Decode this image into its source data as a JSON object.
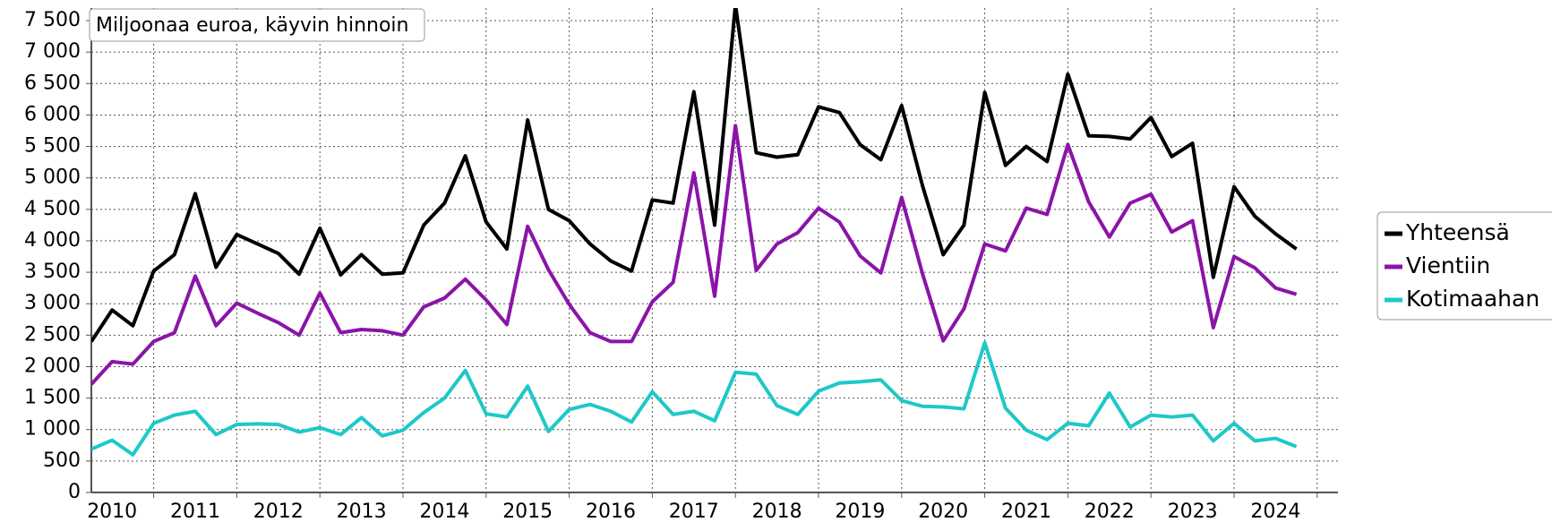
{
  "chart_data": {
    "type": "line",
    "annotation": "Miljoonaa euroa, käyvin hinnoin",
    "x": [
      2010,
      2010.25,
      2010.5,
      2010.75,
      2011,
      2011.25,
      2011.5,
      2011.75,
      2012,
      2012.25,
      2012.5,
      2012.75,
      2013,
      2013.25,
      2013.5,
      2013.75,
      2014,
      2014.25,
      2014.5,
      2014.75,
      2015,
      2015.25,
      2015.5,
      2015.75,
      2016,
      2016.25,
      2016.5,
      2016.75,
      2017,
      2017.25,
      2017.5,
      2017.75,
      2018,
      2018.25,
      2018.5,
      2018.75,
      2019,
      2019.25,
      2019.5,
      2019.75,
      2020,
      2020.25,
      2020.5,
      2020.75,
      2021,
      2021.25,
      2021.5,
      2021.75,
      2022,
      2022.25,
      2022.5,
      2022.75,
      2023,
      2023.25,
      2023.5,
      2023.75,
      2024,
      2024.25,
      2024.5
    ],
    "series": [
      {
        "name": "Yhteensä",
        "color": "#000000",
        "values": [
          2400,
          2900,
          2650,
          3520,
          3780,
          4750,
          3580,
          4100,
          3950,
          3800,
          3470,
          4200,
          3460,
          3780,
          3470,
          3490,
          4250,
          4600,
          5350,
          4300,
          3870,
          5920,
          4500,
          4320,
          3950,
          3680,
          3520,
          4650,
          4600,
          6370,
          4250,
          7750,
          5400,
          5330,
          5370,
          6130,
          6040,
          5530,
          5290,
          6150,
          4880,
          3780,
          4250,
          6360,
          5200,
          5500,
          5260,
          6650,
          5670,
          5660,
          5620,
          5960,
          5340,
          5550,
          3420,
          4860,
          4390,
          4110,
          3870
        ]
      },
      {
        "name": "Vientiin",
        "color": "#8b14a8",
        "values": [
          1720,
          2080,
          2040,
          2400,
          2540,
          3440,
          2650,
          3010,
          2850,
          2700,
          2500,
          3170,
          2540,
          2590,
          2570,
          2500,
          2950,
          3090,
          3390,
          3060,
          2670,
          4230,
          3540,
          2990,
          2540,
          2400,
          2400,
          3030,
          3340,
          5080,
          3120,
          5830,
          3530,
          3950,
          4130,
          4520,
          4300,
          3760,
          3490,
          4690,
          3480,
          2410,
          2920,
          3950,
          3840,
          4520,
          4420,
          5530,
          4620,
          4060,
          4600,
          4740,
          4140,
          4320,
          2620,
          3750,
          3570,
          3250,
          3150
        ]
      },
      {
        "name": "Kotimaahan",
        "color": "#1ec8c8",
        "values": [
          690,
          830,
          600,
          1100,
          1230,
          1290,
          920,
          1080,
          1090,
          1080,
          960,
          1030,
          920,
          1190,
          900,
          990,
          1270,
          1500,
          1940,
          1250,
          1200,
          1690,
          970,
          1320,
          1400,
          1290,
          1120,
          1600,
          1240,
          1290,
          1140,
          1910,
          1880,
          1380,
          1240,
          1610,
          1740,
          1760,
          1790,
          1460,
          1370,
          1360,
          1330,
          2380,
          1340,
          990,
          840,
          1100,
          1060,
          1580,
          1040,
          1230,
          1200,
          1230,
          820,
          1100,
          820,
          860,
          730
        ]
      }
    ],
    "xlim": [
      2010,
      2025
    ],
    "xticks": [
      {
        "value": 2010.75,
        "label": "2010"
      },
      {
        "value": 2011.75,
        "label": "2011"
      },
      {
        "value": 2012.75,
        "label": "2012"
      },
      {
        "value": 2013.75,
        "label": "2013"
      },
      {
        "value": 2014.75,
        "label": "2014"
      },
      {
        "value": 2015.75,
        "label": "2015"
      },
      {
        "value": 2016.75,
        "label": "2016"
      },
      {
        "value": 2017.75,
        "label": "2017"
      },
      {
        "value": 2018.75,
        "label": "2018"
      },
      {
        "value": 2019.75,
        "label": "2019"
      },
      {
        "value": 2020.75,
        "label": "2020"
      },
      {
        "value": 2021.75,
        "label": "2021"
      },
      {
        "value": 2022.75,
        "label": "2022"
      },
      {
        "value": 2023.75,
        "label": "2023"
      },
      {
        "value": 2024.75,
        "label": "2024"
      }
    ],
    "ylim": [
      0,
      7700
    ],
    "yticks": [
      0,
      500,
      {
        "value": 1000,
        "label": "1 000"
      },
      {
        "value": 1500,
        "label": "1 500"
      },
      {
        "value": 2000,
        "label": "2 000"
      },
      {
        "value": 2500,
        "label": "2 500"
      },
      {
        "value": 3000,
        "label": "3 000"
      },
      {
        "value": 3500,
        "label": "3 500"
      },
      {
        "value": 4000,
        "label": "4 000"
      },
      {
        "value": 4500,
        "label": "4 500"
      },
      {
        "value": 5000,
        "label": "5 000"
      },
      {
        "value": 5500,
        "label": "5 500"
      },
      {
        "value": 6000,
        "label": "6 000"
      },
      {
        "value": 6500,
        "label": "6 500"
      },
      {
        "value": 7000,
        "label": "7 000"
      },
      {
        "value": 7500,
        "label": "7 500"
      }
    ],
    "grid": true,
    "legend": "right"
  }
}
